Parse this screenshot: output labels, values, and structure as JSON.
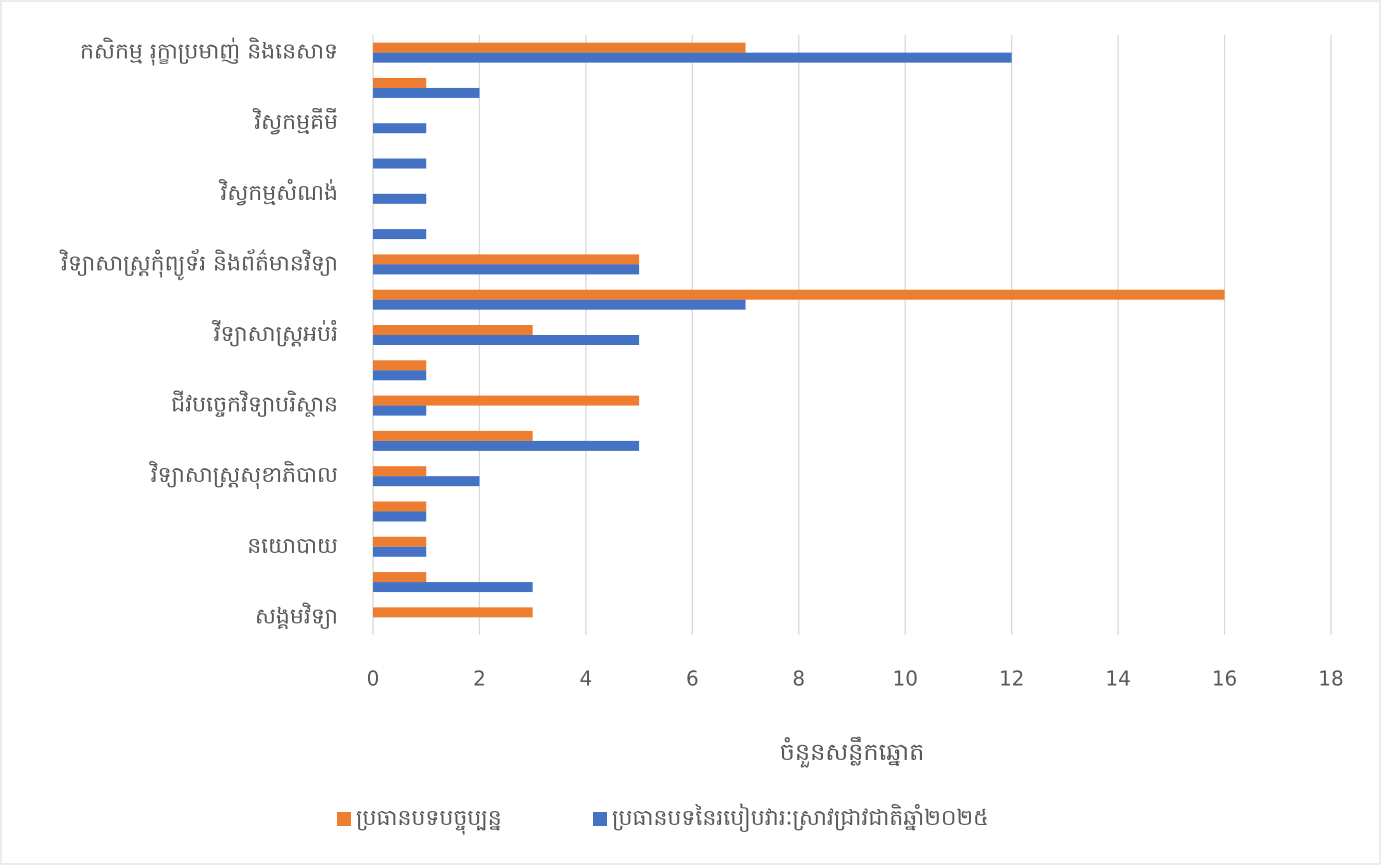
{
  "chart_data": {
    "type": "bar",
    "orientation": "horizontal",
    "categories": [
      "កសិកម្ម រុក្ខាប្រមាញ់ និងនេសាទ",
      null,
      "វិស្វកម្មគីមី",
      null,
      "វិស្វកម្មសំណង់",
      null,
      "វិទ្យាសាស្ត្រកុំព្យូទ័រ និងព័ត៌មានវិទ្យា",
      null,
      "វីទ្យាសាស្ត្រអប់រំ",
      null,
      "ជីវបច្ចេកវិទ្យាបរិស្ថាន",
      null,
      "វិទ្យាសាស្ត្រសុខាភិបាល",
      null,
      "នយោបាយ",
      null,
      "សង្គមវិទ្យា"
    ],
    "series": [
      {
        "name": "ប្រធានបទបច្ចុប្បន្ន",
        "color": "#ed7d31",
        "values": [
          7,
          1,
          0,
          0,
          0,
          0,
          5,
          16,
          3,
          1,
          5,
          3,
          1,
          1,
          1,
          1,
          3
        ]
      },
      {
        "name": "ប្រធានបទនៃរបៀបវារៈស្រាវជ្រាវជាតិឆ្នាំ២០២៥",
        "color": "#4472c4",
        "values": [
          12,
          2,
          1,
          1,
          1,
          1,
          5,
          7,
          5,
          1,
          1,
          5,
          2,
          1,
          1,
          3,
          0
        ]
      }
    ],
    "xlabel": "ចំនួនសន្លឹកឆ្នោត",
    "xlim": [
      0,
      18
    ],
    "xticks": [
      0,
      2,
      4,
      6,
      8,
      10,
      12,
      14,
      16,
      18
    ],
    "grid": true,
    "legend": "bottom"
  }
}
